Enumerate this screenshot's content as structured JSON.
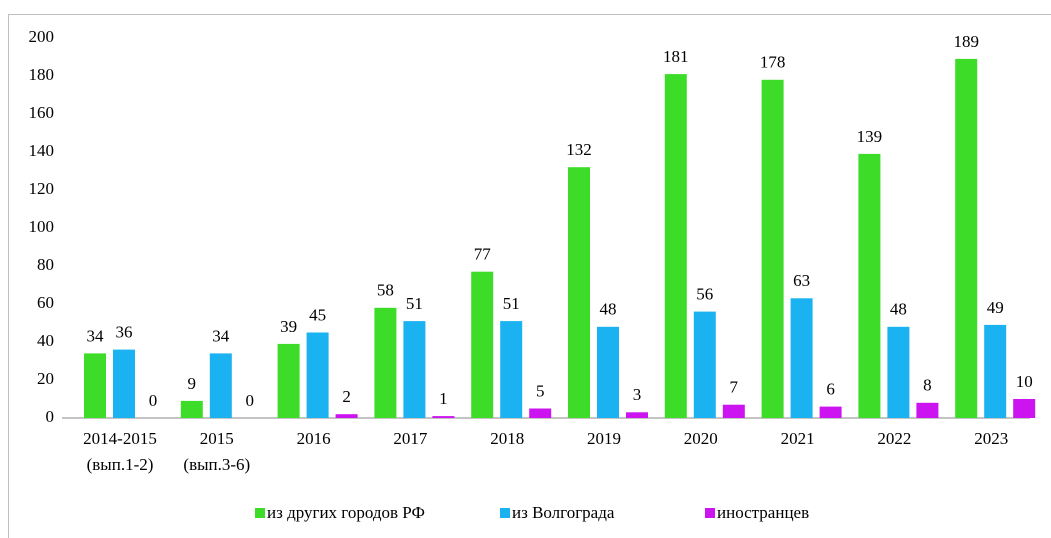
{
  "chart_data": {
    "type": "bar",
    "categories": [
      [
        "2014-2015",
        "(вып.1-2)"
      ],
      [
        "2015",
        "(вып.3-6)"
      ],
      [
        "2016"
      ],
      [
        "2017"
      ],
      [
        "2018"
      ],
      [
        "2019"
      ],
      [
        "2020"
      ],
      [
        "2021"
      ],
      [
        "2022"
      ],
      [
        "2023"
      ]
    ],
    "series": [
      {
        "name": "из других городов РФ",
        "color": "#3cdc28",
        "values": [
          34,
          9,
          39,
          58,
          77,
          132,
          181,
          178,
          139,
          189
        ]
      },
      {
        "name": "из Волгограда",
        "color": "#1ab2f0",
        "values": [
          36,
          34,
          45,
          51,
          51,
          48,
          56,
          63,
          48,
          49
        ]
      },
      {
        "name": "иностранцев",
        "color": "#cc14f0",
        "values": [
          0,
          0,
          2,
          1,
          5,
          3,
          7,
          6,
          8,
          10
        ]
      }
    ],
    "ylim": [
      0,
      200
    ],
    "yticks": [
      0,
      20,
      40,
      60,
      80,
      100,
      120,
      140,
      160,
      180,
      200
    ],
    "legend": "bottom",
    "grid": false
  }
}
